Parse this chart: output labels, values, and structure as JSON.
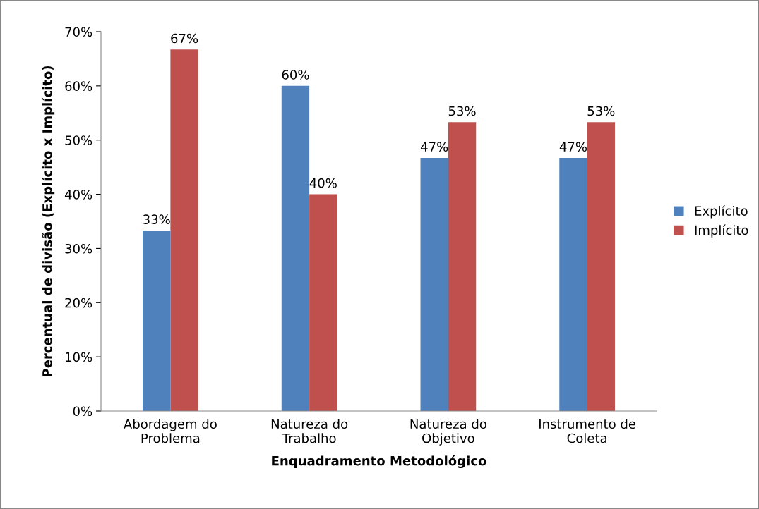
{
  "chart_data": {
    "type": "bar",
    "xlabel": "Enquadramento Metodológico",
    "ylabel": "Percentual de divisão (Explícito x Implícito)",
    "categories": [
      "Abordagem do\nProblema",
      "Natureza do\nTrabalho",
      "Natureza do\nObjetivo",
      "Instrumento de\nColeta"
    ],
    "series": [
      {
        "name": "Explícito",
        "color": "#4f81bd",
        "values": [
          33.3,
          60,
          46.7,
          46.7
        ],
        "value_labels": [
          "33%",
          "60%",
          "47%",
          "47%"
        ]
      },
      {
        "name": "Implícito",
        "color": "#c0504d",
        "values": [
          66.7,
          40,
          53.3,
          53.3
        ],
        "value_labels": [
          "67%",
          "40%",
          "53%",
          "53%"
        ]
      }
    ],
    "ylim": [
      0,
      70
    ],
    "yticks": [
      {
        "value": 0,
        "label": "0%"
      },
      {
        "value": 10,
        "label": "10%"
      },
      {
        "value": 20,
        "label": "20%"
      },
      {
        "value": 30,
        "label": "30%"
      },
      {
        "value": 40,
        "label": "40%"
      },
      {
        "value": 50,
        "label": "50%"
      },
      {
        "value": 60,
        "label": "60%"
      },
      {
        "value": 70,
        "label": "70%"
      }
    ],
    "legend": "right",
    "grid": false
  }
}
